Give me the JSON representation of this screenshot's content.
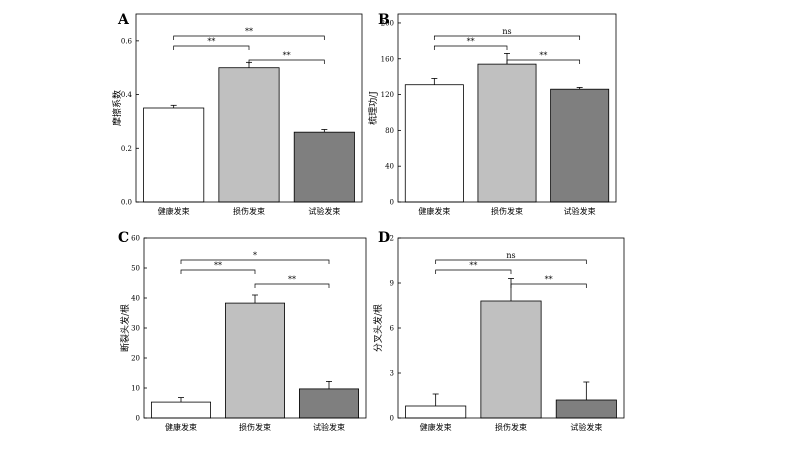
{
  "colors": {
    "bars": [
      "#ffffff",
      "#c0c0c0",
      "#7f7f7f"
    ],
    "axis": "#000000"
  },
  "chart_data": [
    {
      "type": "bar",
      "panel": "A",
      "ylabel": "摩擦系数",
      "categories": [
        "健康发束",
        "损伤发束",
        "试验发束"
      ],
      "values": [
        0.35,
        0.5,
        0.26
      ],
      "errors": [
        0.01,
        0.02,
        0.01
      ],
      "ylim": [
        0,
        0.7
      ],
      "yticks": [
        0.0,
        0.2,
        0.4,
        0.6
      ],
      "tick_labels": [
        "0.0",
        "0.2",
        "0.4",
        "0.6"
      ],
      "significance": [
        {
          "from": 0,
          "to": 1,
          "label": "**"
        },
        {
          "from": 1,
          "to": 2,
          "label": "**"
        },
        {
          "from": 0,
          "to": 2,
          "label": "**"
        }
      ]
    },
    {
      "type": "bar",
      "panel": "B",
      "ylabel": "梳理功/J",
      "categories": [
        "健康发束",
        "损伤发束",
        "试验发束"
      ],
      "values": [
        131,
        154,
        126
      ],
      "errors": [
        7,
        12,
        2
      ],
      "ylim": [
        0,
        210
      ],
      "yticks": [
        0,
        40,
        80,
        120,
        160,
        200
      ],
      "tick_labels": [
        "0",
        "40",
        "80",
        "120",
        "160",
        "200"
      ],
      "significance": [
        {
          "from": 0,
          "to": 1,
          "label": "**"
        },
        {
          "from": 1,
          "to": 2,
          "label": "**"
        },
        {
          "from": 0,
          "to": 2,
          "label": "ns"
        }
      ]
    },
    {
      "type": "bar",
      "panel": "C",
      "ylabel": "断裂头发/根",
      "categories": [
        "健康发束",
        "损伤发束",
        "试验发束"
      ],
      "values": [
        5.3,
        38.3,
        9.7
      ],
      "errors": [
        1.5,
        2.7,
        2.5
      ],
      "ylim": [
        0,
        60
      ],
      "yticks": [
        0,
        10,
        20,
        30,
        40,
        50,
        60
      ],
      "tick_labels": [
        "0",
        "10",
        "20",
        "30",
        "40",
        "50",
        "60"
      ],
      "significance": [
        {
          "from": 0,
          "to": 1,
          "label": "**"
        },
        {
          "from": 1,
          "to": 2,
          "label": "**"
        },
        {
          "from": 0,
          "to": 2,
          "label": "*"
        }
      ]
    },
    {
      "type": "bar",
      "panel": "D",
      "ylabel": "分叉头发/根",
      "categories": [
        "健康发束",
        "损伤发束",
        "试验发束"
      ],
      "values": [
        0.8,
        7.8,
        1.2
      ],
      "errors": [
        0.8,
        1.5,
        1.2
      ],
      "ylim": [
        0,
        12
      ],
      "yticks": [
        0,
        3,
        6,
        9,
        12
      ],
      "tick_labels": [
        "0",
        "3",
        "6",
        "9",
        "12"
      ],
      "significance": [
        {
          "from": 0,
          "to": 1,
          "label": "**"
        },
        {
          "from": 1,
          "to": 2,
          "label": "**"
        },
        {
          "from": 0,
          "to": 2,
          "label": "ns"
        }
      ]
    }
  ]
}
